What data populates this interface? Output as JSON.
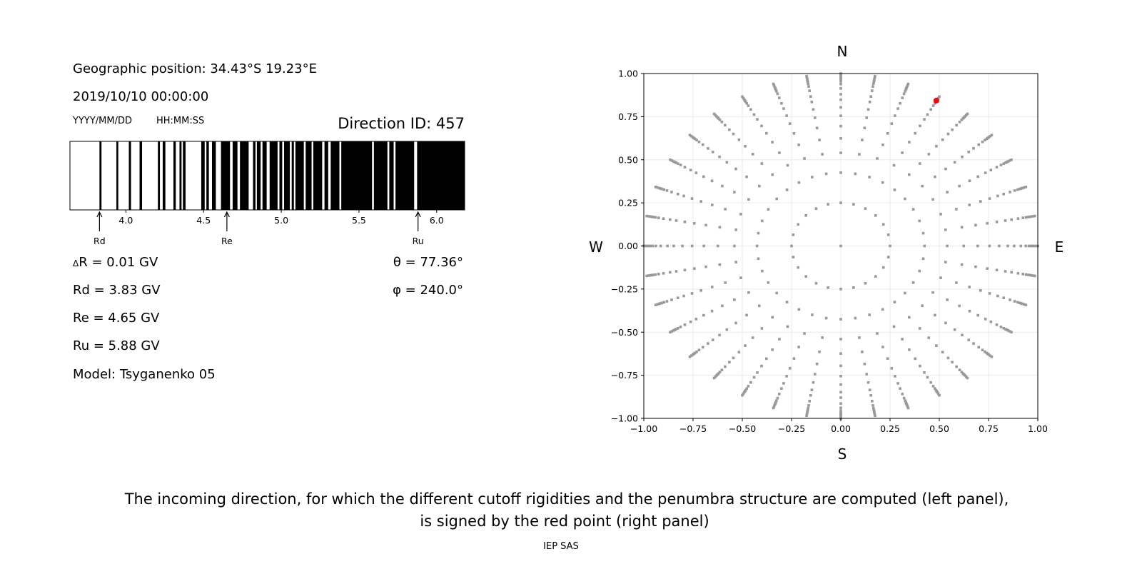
{
  "info": {
    "geo_position": "Geographic position: 34.43°S 19.23°E",
    "datetime": "2019/10/10 00:00:00",
    "date_format": "YYYY/MM/DD",
    "time_format": "HH:MM:SS",
    "direction_id": "Direction ID: 457",
    "delta_r": "R = 0.01 GV",
    "delta_symbol": "Δ",
    "rd": "Rd = 3.83 GV",
    "re": "Re = 4.65 GV",
    "ru": "Ru = 5.88 GV",
    "model": "Model: Tsyganenko 05",
    "theta": "θ = 77.36°",
    "phi": "φ = 240.0°"
  },
  "caption": {
    "line1": "The incoming direction, for which the different cutoff rigidities and the penumbra structure are computed (left panel),",
    "line2": "is signed by the red point (right panel)",
    "credit": "IEP SAS"
  },
  "chart_data": [
    {
      "type": "bar",
      "kind": "penumbra-barcode",
      "xlabel": "",
      "xlim": [
        3.64,
        6.18
      ],
      "xticks": [
        4.0,
        4.5,
        5.0,
        5.5,
        6.0
      ],
      "xtick_labels": [
        "4.0",
        "4.5",
        "5.0",
        "5.5",
        "6.0"
      ],
      "forbidden_intervals_GV": [
        [
          3.83,
          3.843
        ],
        [
          3.939,
          3.951
        ],
        [
          4.019,
          4.033
        ],
        [
          4.088,
          4.104
        ],
        [
          4.206,
          4.219
        ],
        [
          4.237,
          4.254
        ],
        [
          4.306,
          4.321
        ],
        [
          4.345,
          4.358
        ],
        [
          4.367,
          4.384
        ],
        [
          4.485,
          4.507
        ],
        [
          4.518,
          4.534
        ],
        [
          4.554,
          4.579
        ],
        [
          4.612,
          4.67
        ],
        [
          4.687,
          4.718
        ],
        [
          4.734,
          4.79
        ],
        [
          4.818,
          4.834
        ],
        [
          4.843,
          4.867
        ],
        [
          4.879,
          4.906
        ],
        [
          4.925,
          4.976
        ],
        [
          4.988,
          5.006
        ],
        [
          5.018,
          5.055
        ],
        [
          5.067,
          5.081
        ],
        [
          5.091,
          5.145
        ],
        [
          5.157,
          5.195
        ],
        [
          5.206,
          5.263
        ],
        [
          5.278,
          5.302
        ],
        [
          5.318,
          5.374
        ],
        [
          5.386,
          5.584
        ],
        [
          5.596,
          5.683
        ],
        [
          5.695,
          5.723
        ],
        [
          5.735,
          5.855
        ],
        [
          5.874,
          6.18
        ]
      ],
      "markers": [
        {
          "label": "Rd",
          "value": 3.83
        },
        {
          "label": "Re",
          "value": 4.65
        },
        {
          "label": "Ru",
          "value": 5.88
        }
      ],
      "colors": {
        "forbidden": "#000000",
        "allowed": "#ffffff"
      }
    },
    {
      "type": "scatter",
      "xlim": [
        -1,
        1
      ],
      "ylim": [
        -1,
        1
      ],
      "xticks": [
        "−1.00",
        "−0.75",
        "−0.50",
        "−0.25",
        "0.00",
        "0.25",
        "0.50",
        "0.75",
        "1.00"
      ],
      "yticks": [
        "−1.00",
        "−0.75",
        "−0.50",
        "−0.25",
        "0.00",
        "0.25",
        "0.50",
        "0.75",
        "1.00"
      ],
      "grid": true,
      "compass": {
        "north": "N",
        "south": "S",
        "west": "W",
        "east": "E"
      },
      "ray_azimuth_step_deg": 10,
      "ray_radii": [
        0.425,
        0.54,
        0.624,
        0.695,
        0.755,
        0.804,
        0.848,
        0.88,
        0.914,
        0.939,
        0.955,
        0.966,
        0.973,
        0.98,
        0.99,
        1.0
      ],
      "inner_ring": {
        "radius": 0.25,
        "count": 24
      },
      "center_point": [
        0,
        0
      ],
      "selected_point": {
        "x": 0.485,
        "y": 0.843
      },
      "colors": {
        "points": "#999999",
        "selected": "#ff0000",
        "grid": "#ebebeb"
      }
    }
  ]
}
